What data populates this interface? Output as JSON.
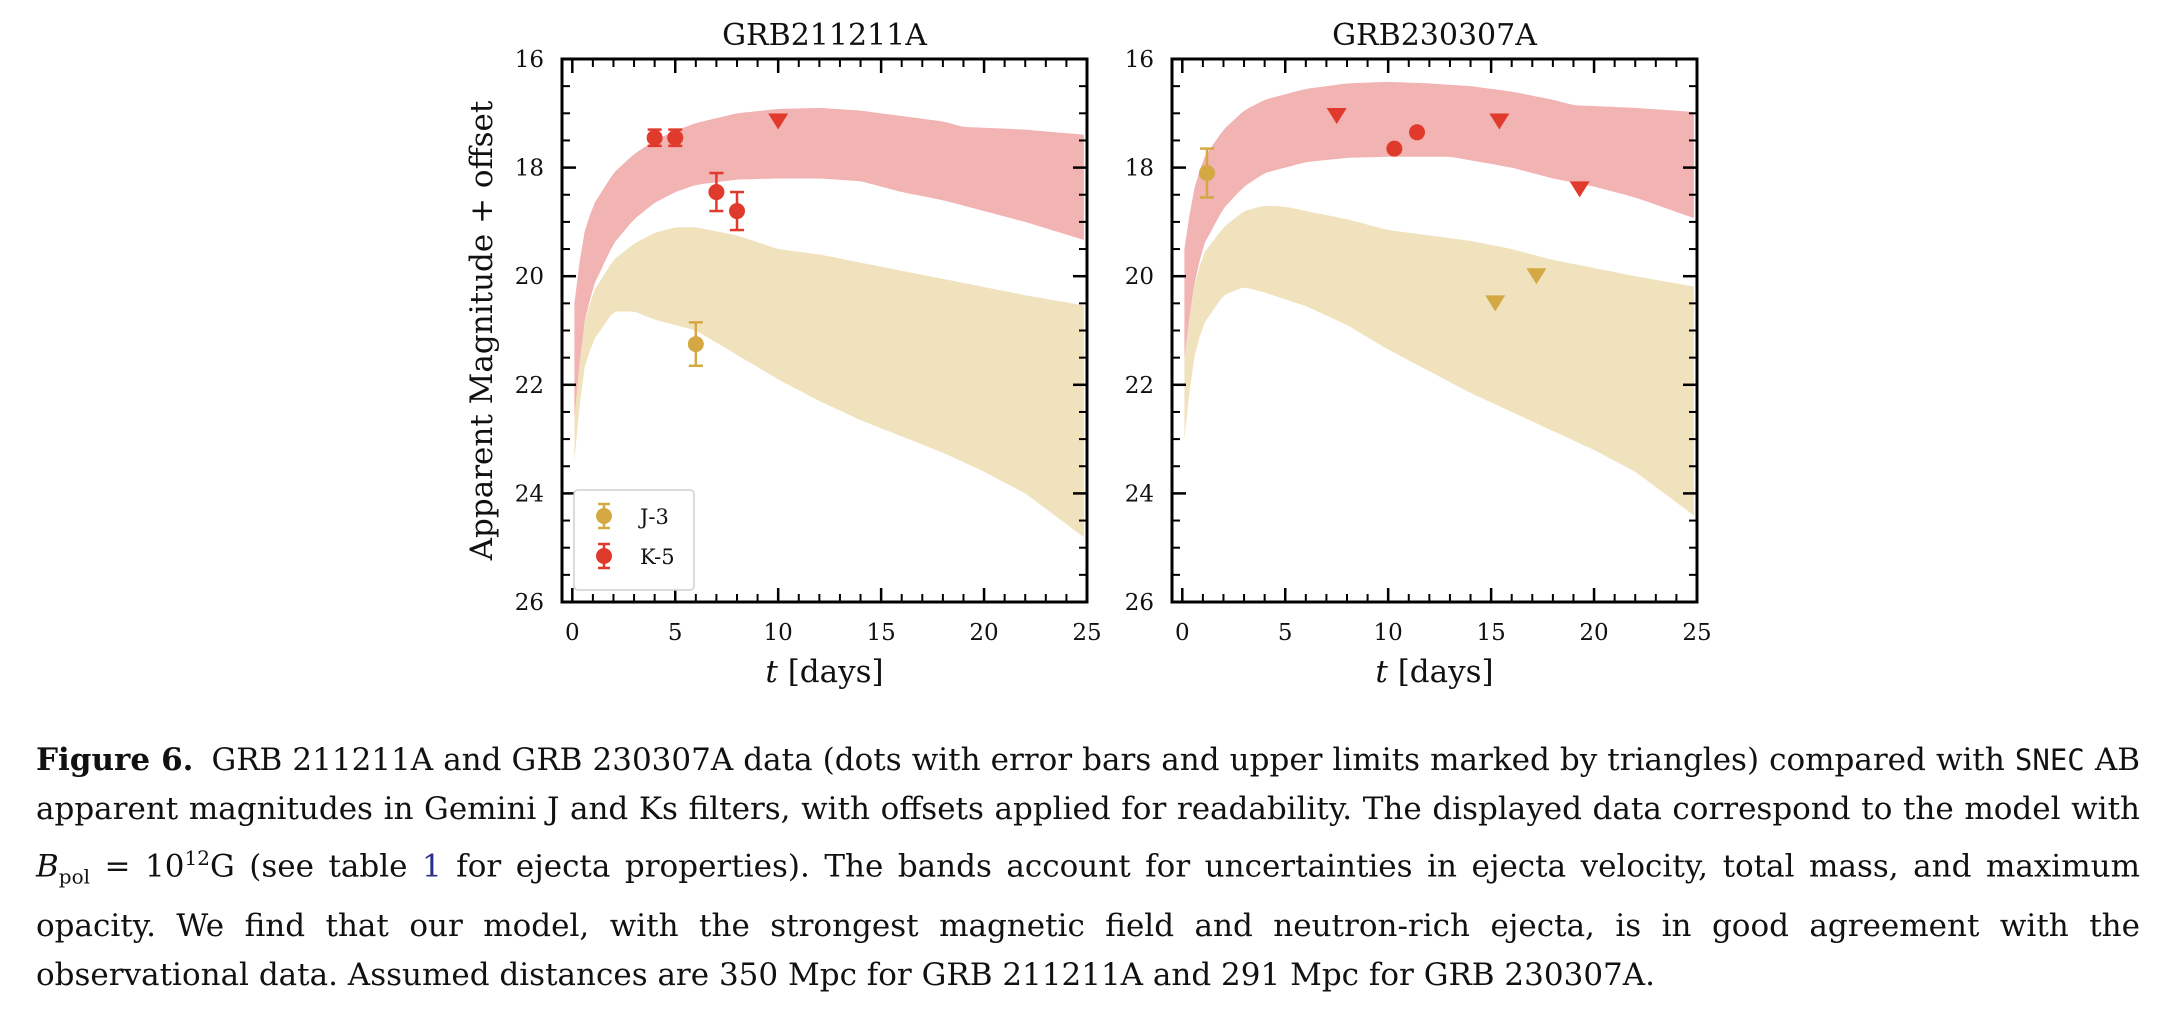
{
  "chart_data": [
    {
      "type": "scatter",
      "title": "GRB211211A",
      "xlabel": "t [days]",
      "ylabel": "Apparent Magnitude + offset",
      "xlim": [
        -0.5,
        25
      ],
      "ylim": [
        26,
        16
      ],
      "y_inverted": true,
      "xticks": [
        0,
        5,
        10,
        15,
        20,
        25
      ],
      "yticks": [
        16,
        18,
        20,
        22,
        24,
        26
      ],
      "legend": {
        "placement": "lower-left",
        "entries": [
          {
            "label": "J-3",
            "color": "#d4a843"
          },
          {
            "label": "K-5",
            "color": "#e03a2c"
          }
        ]
      },
      "bands": [
        {
          "name": "K-5",
          "color": "#f2b3b3",
          "upper": [
            [
              0.1,
              20.5
            ],
            [
              0.5,
              19.3
            ],
            [
              1,
              18.7
            ],
            [
              2,
              18.1
            ],
            [
              3,
              17.75
            ],
            [
              4,
              17.5
            ],
            [
              5,
              17.32
            ],
            [
              6,
              17.18
            ],
            [
              8,
              17.0
            ],
            [
              10,
              16.92
            ],
            [
              12,
              16.9
            ],
            [
              14,
              16.95
            ],
            [
              16,
              17.05
            ],
            [
              18,
              17.15
            ],
            [
              19,
              17.25
            ],
            [
              22,
              17.3
            ],
            [
              25,
              17.4
            ]
          ],
          "lower": [
            [
              0.1,
              22.6
            ],
            [
              0.5,
              21.0
            ],
            [
              1,
              20.2
            ],
            [
              2,
              19.4
            ],
            [
              3,
              18.95
            ],
            [
              4,
              18.65
            ],
            [
              5,
              18.45
            ],
            [
              6,
              18.32
            ],
            [
              8,
              18.22
            ],
            [
              10,
              18.2
            ],
            [
              12,
              18.2
            ],
            [
              14,
              18.25
            ],
            [
              16,
              18.45
            ],
            [
              18,
              18.6
            ],
            [
              20,
              18.8
            ],
            [
              22,
              19.0
            ],
            [
              25,
              19.35
            ]
          ]
        },
        {
          "name": "J-3",
          "color": "#f0e2bd",
          "upper": [
            [
              0.1,
              22.0
            ],
            [
              0.5,
              21.0
            ],
            [
              1,
              20.3
            ],
            [
              2,
              19.7
            ],
            [
              3,
              19.4
            ],
            [
              4,
              19.2
            ],
            [
              5,
              19.1
            ],
            [
              6,
              19.1
            ],
            [
              8,
              19.25
            ],
            [
              10,
              19.5
            ],
            [
              12,
              19.6
            ],
            [
              14,
              19.75
            ],
            [
              16,
              19.9
            ],
            [
              18,
              20.05
            ],
            [
              20,
              20.2
            ],
            [
              22,
              20.35
            ],
            [
              25,
              20.55
            ]
          ]
        },
        {
          "name": "J-3-lower",
          "color": "#f0e2bd",
          "lower": [
            [
              0.1,
              23.4
            ],
            [
              0.5,
              21.8
            ],
            [
              1,
              21.2
            ],
            [
              2,
              20.65
            ],
            [
              3,
              20.65
            ],
            [
              4,
              20.8
            ],
            [
              6,
              21.0
            ],
            [
              8,
              21.45
            ],
            [
              10,
              21.9
            ],
            [
              12,
              22.3
            ],
            [
              14,
              22.65
            ],
            [
              16,
              22.95
            ],
            [
              18,
              23.25
            ],
            [
              20,
              23.6
            ],
            [
              22,
              24.0
            ],
            [
              25,
              24.85
            ]
          ]
        }
      ],
      "series": [
        {
          "name": "K-5",
          "color": "#e03a2c",
          "points": [
            {
              "x": 4.0,
              "y": 17.45,
              "yerr": 0.15,
              "limit": false
            },
            {
              "x": 5.0,
              "y": 17.45,
              "yerr": 0.15,
              "limit": false
            },
            {
              "x": 7.0,
              "y": 18.45,
              "yerr": 0.35,
              "limit": false
            },
            {
              "x": 8.0,
              "y": 18.8,
              "yerr": 0.35,
              "limit": false
            },
            {
              "x": 10.0,
              "y": 17.15,
              "limit": true
            }
          ]
        },
        {
          "name": "J-3",
          "color": "#d4a843",
          "points": [
            {
              "x": 6.0,
              "y": 21.25,
              "yerr": 0.4,
              "limit": false
            }
          ]
        }
      ]
    },
    {
      "type": "scatter",
      "title": "GRB230307A",
      "xlabel": "t [days]",
      "ylabel": "",
      "xlim": [
        -0.5,
        25
      ],
      "ylim": [
        26,
        16
      ],
      "y_inverted": true,
      "xticks": [
        0,
        5,
        10,
        15,
        20,
        25
      ],
      "yticks": [
        16,
        18,
        20,
        22,
        24,
        26
      ],
      "bands": [
        {
          "name": "K-5",
          "color": "#f2b3b3",
          "upper": [
            [
              0.1,
              19.5
            ],
            [
              0.5,
              18.5
            ],
            [
              1,
              17.85
            ],
            [
              2,
              17.3
            ],
            [
              3,
              16.95
            ],
            [
              4,
              16.75
            ],
            [
              6,
              16.55
            ],
            [
              8,
              16.45
            ],
            [
              10,
              16.42
            ],
            [
              12,
              16.45
            ],
            [
              14,
              16.5
            ],
            [
              16,
              16.6
            ],
            [
              18,
              16.75
            ],
            [
              19,
              16.85
            ],
            [
              22,
              16.9
            ],
            [
              25,
              16.98
            ]
          ],
          "lower": [
            [
              0.1,
              21.5
            ],
            [
              0.5,
              20.3
            ],
            [
              1,
              19.45
            ],
            [
              2,
              18.75
            ],
            [
              3,
              18.35
            ],
            [
              4,
              18.1
            ],
            [
              6,
              17.9
            ],
            [
              8,
              17.82
            ],
            [
              10,
              17.8
            ],
            [
              12,
              17.8
            ],
            [
              13,
              17.8
            ],
            [
              16,
              18.0
            ],
            [
              18,
              18.2
            ],
            [
              20,
              18.35
            ],
            [
              22,
              18.55
            ],
            [
              25,
              18.95
            ]
          ]
        },
        {
          "name": "J-3",
          "color": "#f0e2bd",
          "upper": [
            [
              0.1,
              21.5
            ],
            [
              0.5,
              20.3
            ],
            [
              1,
              19.6
            ],
            [
              2,
              19.1
            ],
            [
              3,
              18.8
            ],
            [
              4,
              18.7
            ],
            [
              5,
              18.72
            ],
            [
              6,
              18.8
            ],
            [
              8,
              18.95
            ],
            [
              10,
              19.15
            ],
            [
              12,
              19.25
            ],
            [
              14,
              19.35
            ],
            [
              16,
              19.5
            ],
            [
              18,
              19.7
            ],
            [
              20,
              19.85
            ],
            [
              22,
              20.0
            ],
            [
              25,
              20.2
            ]
          ]
        },
        {
          "name": "J-3-lower",
          "color": "#f0e2bd",
          "lower": [
            [
              0.1,
              23.0
            ],
            [
              0.5,
              21.6
            ],
            [
              1,
              20.9
            ],
            [
              2,
              20.35
            ],
            [
              3,
              20.2
            ],
            [
              4,
              20.3
            ],
            [
              6,
              20.55
            ],
            [
              8,
              20.9
            ],
            [
              10,
              21.35
            ],
            [
              12,
              21.75
            ],
            [
              14,
              22.15
            ],
            [
              16,
              22.5
            ],
            [
              18,
              22.85
            ],
            [
              20,
              23.2
            ],
            [
              22,
              23.6
            ],
            [
              25,
              24.45
            ]
          ]
        }
      ],
      "series": [
        {
          "name": "K-5",
          "color": "#e03a2c",
          "points": [
            {
              "x": 7.5,
              "y": 17.05,
              "limit": true
            },
            {
              "x": 10.3,
              "y": 17.65,
              "limit": false
            },
            {
              "x": 11.4,
              "y": 17.35,
              "limit": false
            },
            {
              "x": 15.4,
              "y": 17.15,
              "limit": true
            },
            {
              "x": 19.3,
              "y": 18.4,
              "limit": true
            }
          ]
        },
        {
          "name": "J-3",
          "color": "#d4a843",
          "points": [
            {
              "x": 1.2,
              "y": 18.1,
              "yerr": 0.45,
              "limit": false
            },
            {
              "x": 15.2,
              "y": 20.5,
              "limit": true
            },
            {
              "x": 17.2,
              "y": 20.0,
              "limit": true
            }
          ]
        }
      ]
    }
  ],
  "caption": {
    "label": "Figure 6.",
    "text1": "GRB 211211A and GRB 230307A data (dots with error bars and upper limits marked by triangles) compared with",
    "code": "SNEC",
    "text2": " AB apparent magnitudes in Gemini J and Ks filters, with offsets applied for readability. The displayed data correspond to the model with ",
    "b": "B",
    "bsub": "pol",
    "eq": " = 10",
    "exp": "12",
    "unit": "G (see table ",
    "ref": "1",
    "text3": " for ejecta properties). The bands account for uncertainties in ejecta velocity, total mass, and maximum opacity. We find that our model, with the strongest magnetic field and neutron-rich ejecta, is in good agreement with the observational data. Assumed distances are 350 Mpc for GRB 211211A and 291 Mpc for GRB 230307A."
  }
}
